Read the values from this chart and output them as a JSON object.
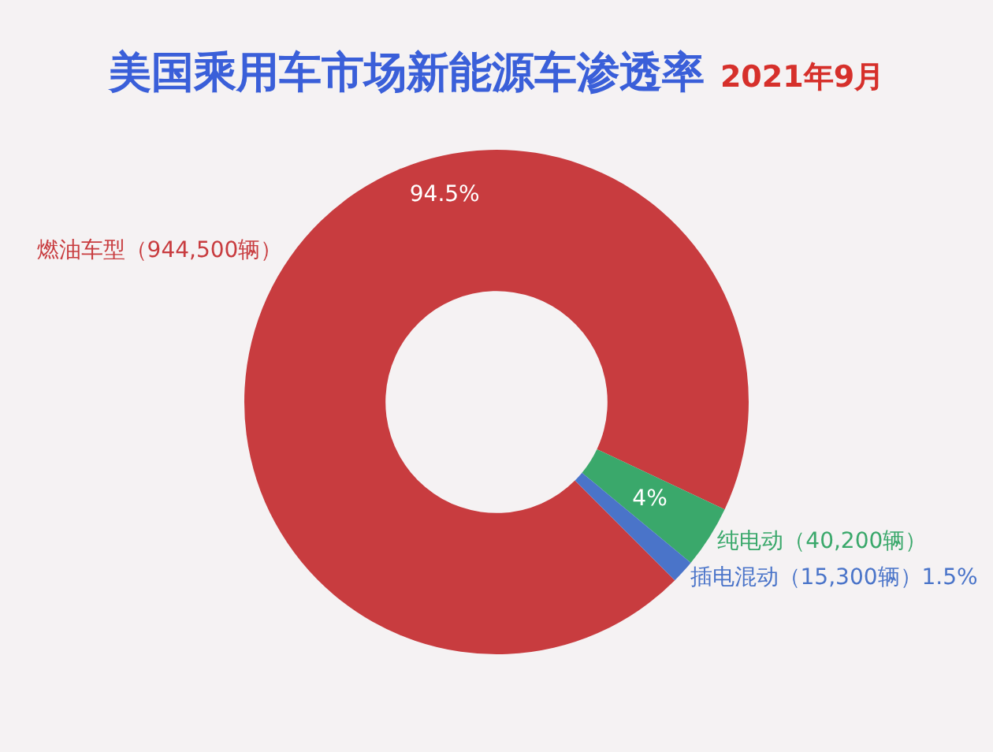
{
  "chart_data": {
    "type": "donut",
    "title": "美国乘用车市场新能源车渗透率",
    "subtitle": "2021年9月",
    "categories": [
      "燃油车型（944,500辆）",
      "纯电动（40,200辆）",
      "插电混动（15,300辆）"
    ],
    "values": [
      94.5,
      4,
      1.5
    ],
    "colors": [
      "#c83c3f",
      "#3aa86b",
      "#4a74c9"
    ],
    "value_labels": [
      "94.5%",
      "4%",
      "1.5%"
    ],
    "legend": false
  }
}
